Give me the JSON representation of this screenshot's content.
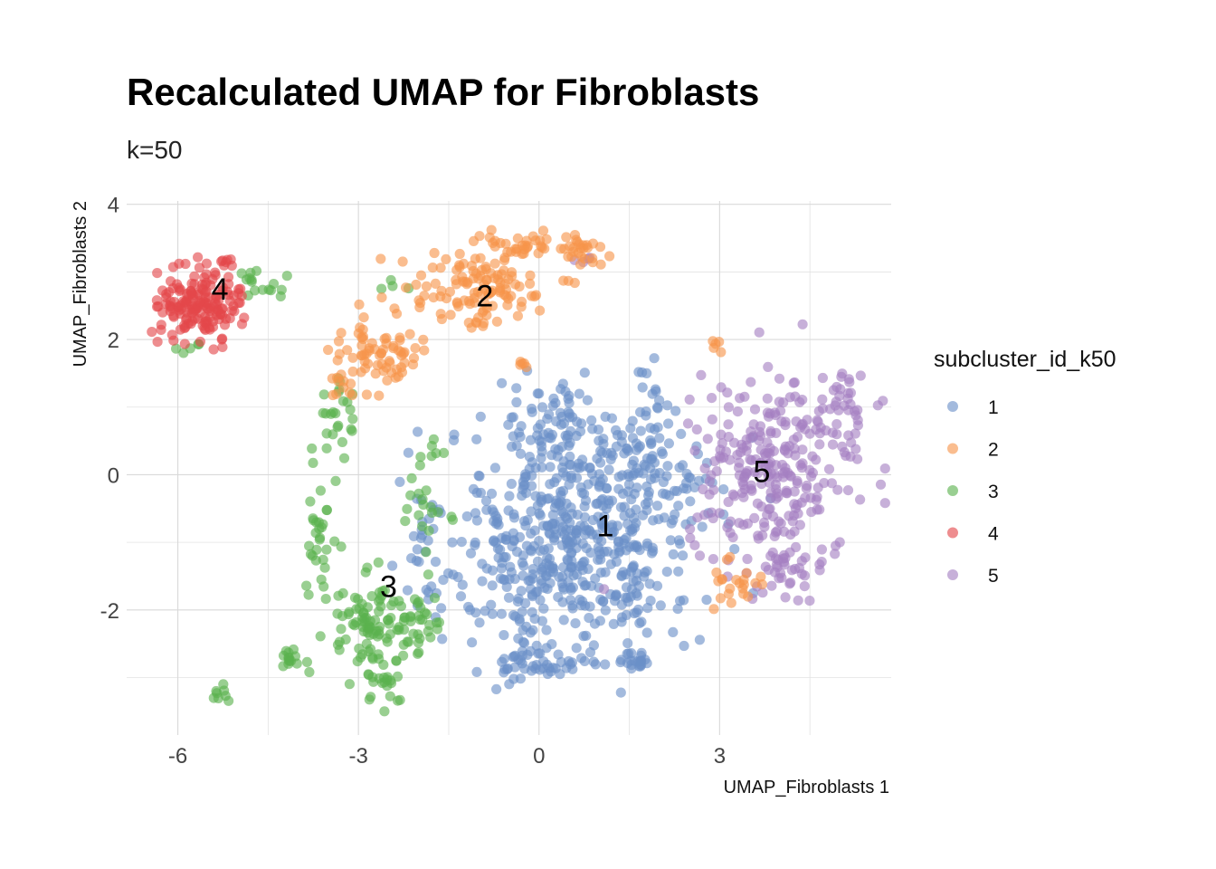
{
  "chart_data": {
    "type": "scatter",
    "title": "Recalculated UMAP for Fibroblasts",
    "subtitle": "k=50",
    "xlabel": "UMAP_Fibroblasts 1",
    "ylabel": "UMAP_Fibroblasts 2",
    "xlim": [
      -6.85,
      5.85
    ],
    "ylim": [
      -3.85,
      4.05
    ],
    "x_ticks": [
      -6,
      -3,
      0,
      3
    ],
    "x_tick_labels": [
      "-6",
      "-3",
      "0",
      "3"
    ],
    "y_ticks": [
      -2,
      0,
      2,
      4
    ],
    "y_tick_labels": [
      "-2",
      "0",
      "2",
      "4"
    ],
    "x_minor_ticks": [
      -4.5,
      -1.5,
      1.5,
      4.5
    ],
    "y_minor_ticks": [
      -3,
      -1,
      1,
      3
    ],
    "grid": true,
    "legend": {
      "title": "subcluster_id_k50",
      "position": "right",
      "entries": [
        "1",
        "2",
        "3",
        "4",
        "5"
      ]
    },
    "colors": {
      "1": "#6A8FC8",
      "2": "#F7954A",
      "3": "#5BB14E",
      "4": "#E3474A",
      "5": "#A47FC2"
    },
    "point_alpha": 0.62,
    "cluster_labels": [
      {
        "label": "1",
        "x": 1.1,
        "y": -0.75
      },
      {
        "label": "2",
        "x": -0.9,
        "y": 2.65
      },
      {
        "label": "3",
        "x": -2.5,
        "y": -1.65
      },
      {
        "label": "4",
        "x": -5.3,
        "y": 2.75
      },
      {
        "label": "5",
        "x": 3.7,
        "y": 0.05
      }
    ],
    "series": [
      {
        "name": "1",
        "blobs": [
          {
            "cx": 0.5,
            "cy": -1.0,
            "sx": 1.3,
            "sy": 1.05,
            "n": 520
          },
          {
            "cx": 1.7,
            "cy": 0.1,
            "sx": 0.8,
            "sy": 0.55,
            "n": 110
          },
          {
            "cx": 0.2,
            "cy": 0.7,
            "sx": 0.5,
            "sy": 0.4,
            "n": 60
          },
          {
            "cx": 0.0,
            "cy": -2.8,
            "sx": 0.4,
            "sy": 0.15,
            "n": 45
          },
          {
            "cx": 1.6,
            "cy": -2.75,
            "sx": 0.15,
            "sy": 0.08,
            "n": 22
          },
          {
            "cx": 1.9,
            "cy": 1.3,
            "sx": 0.25,
            "sy": 0.35,
            "n": 14
          },
          {
            "cx": -1.8,
            "cy": -1.5,
            "sx": 0.2,
            "sy": 0.6,
            "n": 18
          }
        ]
      },
      {
        "name": "2",
        "blobs": [
          {
            "cx": -1.0,
            "cy": 2.75,
            "sx": 0.75,
            "sy": 0.35,
            "n": 120
          },
          {
            "cx": -2.7,
            "cy": 1.8,
            "sx": 0.6,
            "sy": 0.35,
            "n": 70
          },
          {
            "cx": -0.2,
            "cy": 3.4,
            "sx": 0.6,
            "sy": 0.15,
            "n": 40
          },
          {
            "cx": 0.7,
            "cy": 3.3,
            "sx": 0.25,
            "sy": 0.15,
            "n": 18
          },
          {
            "cx": -3.3,
            "cy": 1.3,
            "sx": 0.2,
            "sy": 0.15,
            "n": 10
          },
          {
            "cx": 3.3,
            "cy": -1.6,
            "sx": 0.25,
            "sy": 0.3,
            "n": 22
          },
          {
            "cx": 3.0,
            "cy": 1.9,
            "sx": 0.1,
            "sy": 0.1,
            "n": 5
          },
          {
            "cx": -0.3,
            "cy": 1.6,
            "sx": 0.15,
            "sy": 0.05,
            "n": 5
          }
        ]
      },
      {
        "name": "3",
        "blobs": [
          {
            "cx": -2.8,
            "cy": -2.2,
            "sx": 0.45,
            "sy": 0.4,
            "n": 90
          },
          {
            "cx": -2.0,
            "cy": -2.2,
            "sx": 0.3,
            "sy": 0.3,
            "n": 30
          },
          {
            "cx": -3.6,
            "cy": -1.0,
            "sx": 0.15,
            "sy": 0.6,
            "n": 30
          },
          {
            "cx": -3.4,
            "cy": 0.8,
            "sx": 0.25,
            "sy": 0.45,
            "n": 25
          },
          {
            "cx": -1.9,
            "cy": -0.4,
            "sx": 0.2,
            "sy": 0.5,
            "n": 25
          },
          {
            "cx": -4.1,
            "cy": -2.7,
            "sx": 0.2,
            "sy": 0.12,
            "n": 15
          },
          {
            "cx": -5.3,
            "cy": -3.25,
            "sx": 0.1,
            "sy": 0.08,
            "n": 8
          },
          {
            "cx": -4.7,
            "cy": 2.8,
            "sx": 0.25,
            "sy": 0.2,
            "n": 16
          },
          {
            "cx": -5.8,
            "cy": 1.9,
            "sx": 0.2,
            "sy": 0.1,
            "n": 5
          },
          {
            "cx": -2.6,
            "cy": -3.2,
            "sx": 0.3,
            "sy": 0.25,
            "n": 20
          },
          {
            "cx": -2.5,
            "cy": 2.8,
            "sx": 0.2,
            "sy": 0.1,
            "n": 4
          }
        ]
      },
      {
        "name": "4",
        "blobs": [
          {
            "cx": -5.6,
            "cy": 2.55,
            "sx": 0.42,
            "sy": 0.32,
            "n": 170
          },
          {
            "cx": -5.2,
            "cy": 3.15,
            "sx": 0.1,
            "sy": 0.1,
            "n": 5
          }
        ]
      },
      {
        "name": "5",
        "blobs": [
          {
            "cx": 3.9,
            "cy": 0.1,
            "sx": 0.9,
            "sy": 0.8,
            "n": 260
          },
          {
            "cx": 5.1,
            "cy": 1.0,
            "sx": 0.25,
            "sy": 0.3,
            "n": 30
          },
          {
            "cx": 4.0,
            "cy": -1.4,
            "sx": 0.5,
            "sy": 0.3,
            "n": 40
          },
          {
            "cx": 0.8,
            "cy": 3.15,
            "sx": 0.1,
            "sy": 0.05,
            "n": 4
          }
        ]
      }
    ]
  }
}
